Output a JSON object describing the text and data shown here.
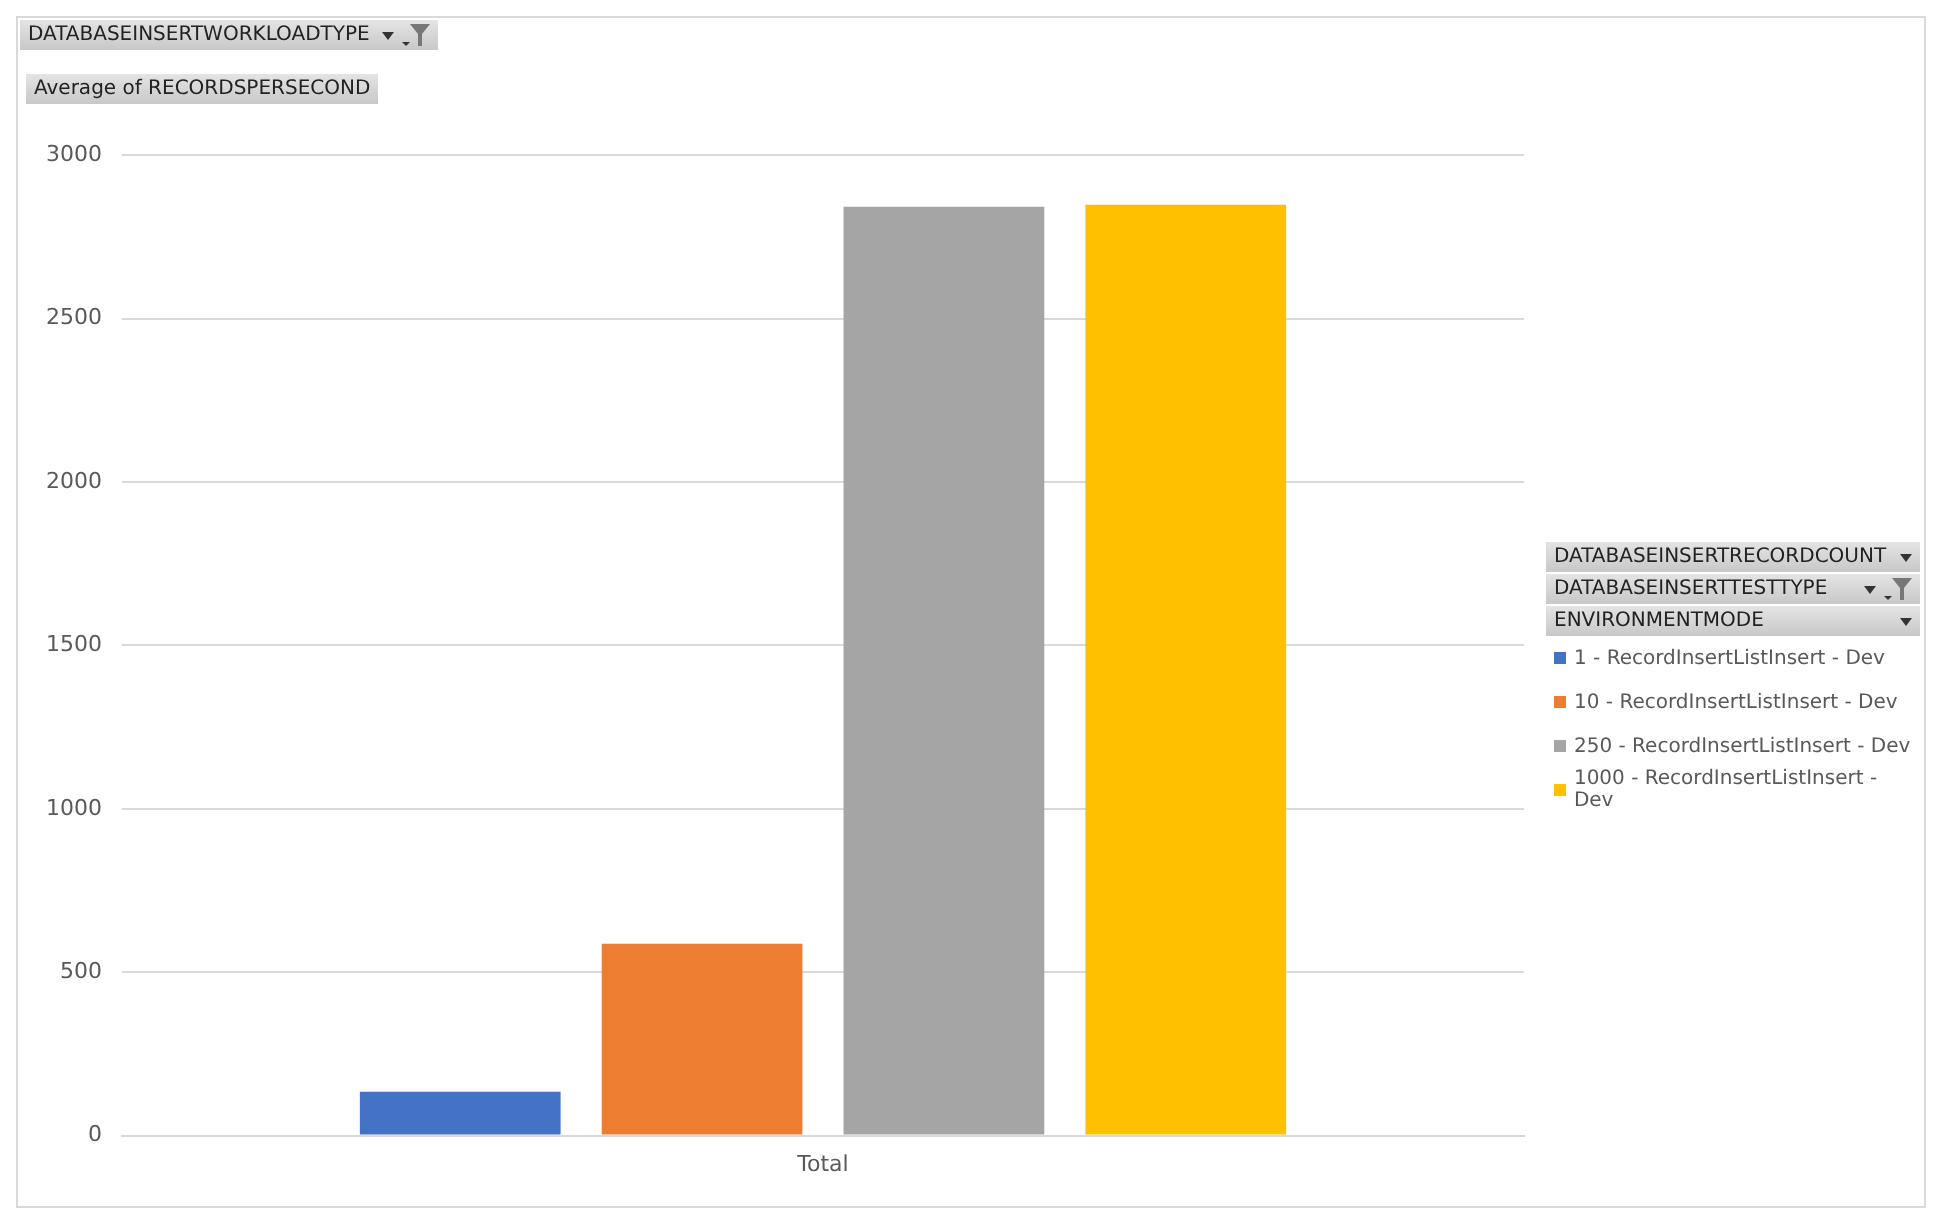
{
  "chart_data": {
    "type": "bar",
    "ylabel": "Average of RECORDSPERSECOND",
    "legend_title": "ENVIRONMENTMODE",
    "annotations": [
      "DATABASEINSERTWORKLOADTYPE",
      "DATABASEINSERTRECORDCOUNT",
      "DATABASEINSERTTESTTYPE"
    ],
    "categories": [
      "Total"
    ],
    "series": [
      {
        "name": "1 - RecordInsertListInsert - Dev",
        "color": "#4472c4",
        "values": [
          134
        ]
      },
      {
        "name": "10 - RecordInsertListInsert - Dev",
        "color": "#ed7d31",
        "values": [
          587
        ]
      },
      {
        "name": "250 - RecordInsertListInsert - Dev",
        "color": "#a5a5a5",
        "values": [
          2842
        ]
      },
      {
        "name": "1000 - RecordInsertListInsert - Dev",
        "color": "#ffc000",
        "values": [
          2848
        ]
      }
    ],
    "ylim": [
      0,
      3000
    ],
    "yticks": [
      0,
      500,
      1000,
      1500,
      2000,
      2500,
      3000
    ],
    "grid": "y",
    "legend": "right"
  }
}
